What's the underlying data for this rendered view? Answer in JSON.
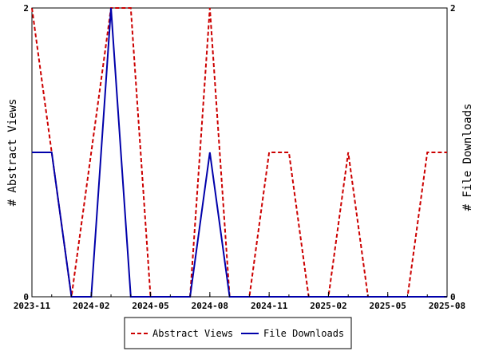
{
  "chart_data": {
    "type": "line",
    "x": [
      "2023-11",
      "2023-12",
      "2024-01",
      "2024-02",
      "2024-03",
      "2024-04",
      "2024-05",
      "2024-06",
      "2024-07",
      "2024-08",
      "2024-09",
      "2024-10",
      "2024-11",
      "2024-12",
      "2025-01",
      "2025-02",
      "2025-03",
      "2025-04",
      "2025-05",
      "2025-06",
      "2025-07",
      "2025-08"
    ],
    "x_ticks": [
      "2023-11",
      "2024-02",
      "2024-05",
      "2024-08",
      "2024-11",
      "2025-02",
      "2025-05",
      "2025-08"
    ],
    "series": [
      {
        "name": "Abstract Views",
        "axis": "left",
        "color": "#cc0000",
        "style": "dashed",
        "values": [
          2,
          1,
          0,
          1,
          2,
          2,
          0,
          0,
          0,
          2,
          0,
          0,
          1,
          1,
          0,
          0,
          1,
          0,
          0,
          0,
          1,
          1
        ]
      },
      {
        "name": "File Downloads",
        "axis": "right",
        "color": "#0000aa",
        "style": "solid",
        "values": [
          1,
          1,
          0,
          0,
          2,
          0,
          0,
          0,
          0,
          1,
          0,
          0,
          0,
          0,
          0,
          0,
          0,
          0,
          0,
          0,
          0,
          0
        ]
      }
    ],
    "ylabel": "# Abstract Views",
    "y2label": "# File Downloads",
    "ylim": [
      0,
      2
    ],
    "y2lim": [
      0,
      2
    ],
    "y_ticks": [
      "0",
      "2"
    ],
    "y2_ticks": [
      "0",
      "2"
    ],
    "grid": false,
    "legend_position": "bottom"
  }
}
